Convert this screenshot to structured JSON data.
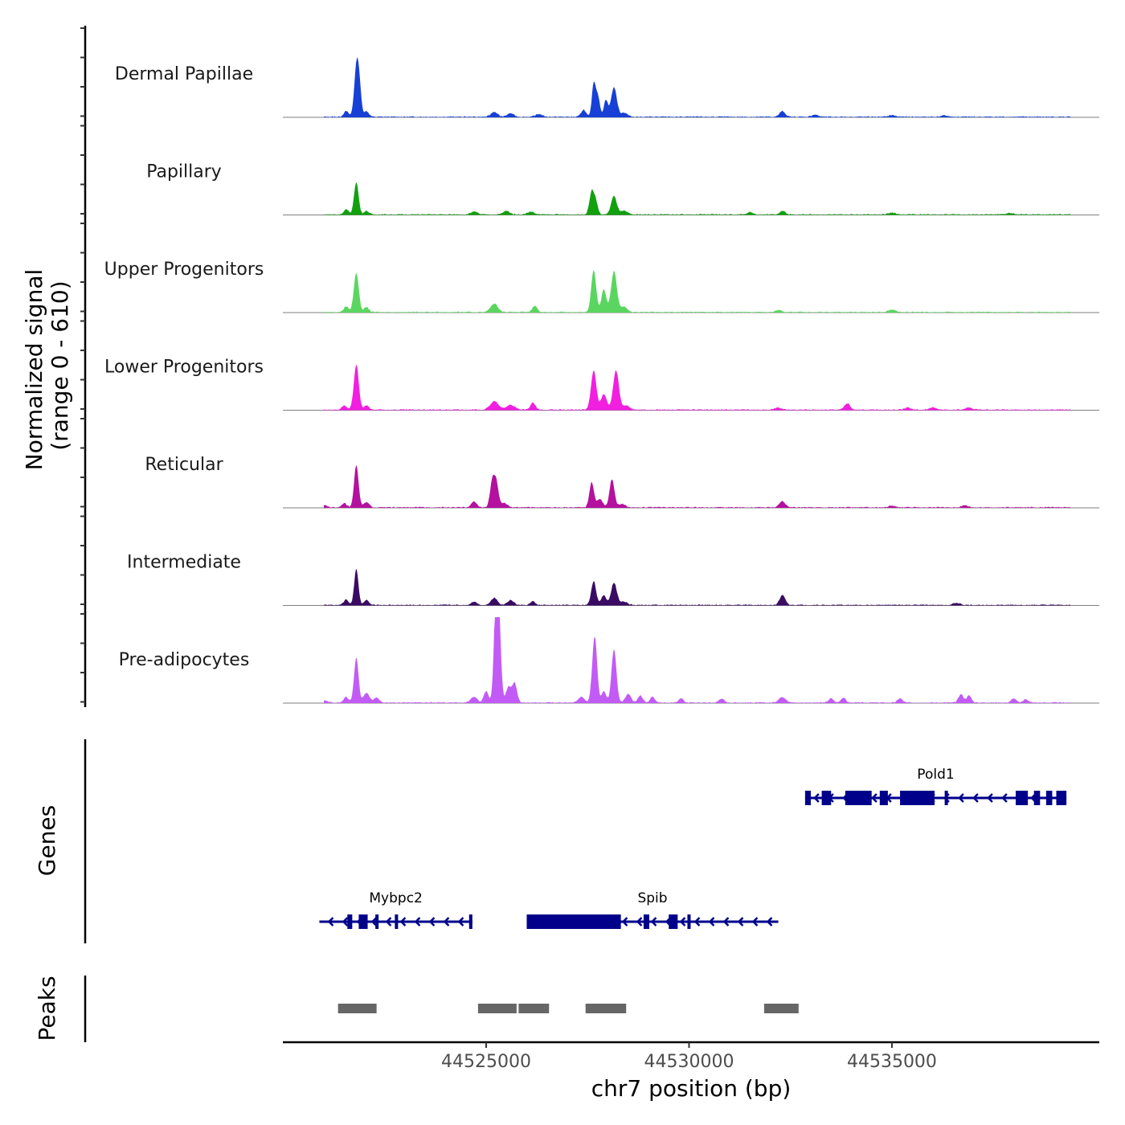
{
  "chart_data": {
    "type": "area",
    "title": "",
    "region": {
      "chrom": "chr7",
      "start": 44519990,
      "end": 44540110
    },
    "xlabel": "chr7 position (bp)",
    "ylabel": "Normalized signal",
    "ylabel_sub": "(range 0 - 610)",
    "ylim": [
      0,
      610
    ],
    "x_ticks": [
      44525000,
      44530000,
      44535000
    ],
    "x_tick_labels": [
      "44525000",
      "44530000",
      "44535000"
    ],
    "grid": false,
    "legend": "none",
    "signal_extent": [
      44521000,
      44539400
    ],
    "series": [
      {
        "name": "Dermal Papillae",
        "color": "#1740d6",
        "peaks": [
          [
            44521550,
            40,
            60
          ],
          [
            44521800,
            320,
            55
          ],
          [
            44521870,
            200,
            50
          ],
          [
            44522050,
            40,
            60
          ],
          [
            44525200,
            35,
            80
          ],
          [
            44525600,
            25,
            80
          ],
          [
            44526300,
            20,
            80
          ],
          [
            44527400,
            50,
            60
          ],
          [
            44527650,
            230,
            45
          ],
          [
            44527750,
            150,
            50
          ],
          [
            44527950,
            120,
            50
          ],
          [
            44528150,
            210,
            70
          ],
          [
            44528400,
            30,
            80
          ],
          [
            44532300,
            40,
            70
          ],
          [
            44533100,
            15,
            80
          ],
          [
            44535000,
            12,
            80
          ],
          [
            44536300,
            10,
            80
          ]
        ]
      },
      {
        "name": "Papillary",
        "color": "#12a00f",
        "peaks": [
          [
            44521550,
            35,
            60
          ],
          [
            44521800,
            230,
            55
          ],
          [
            44522050,
            25,
            60
          ],
          [
            44524700,
            20,
            80
          ],
          [
            44525500,
            25,
            80
          ],
          [
            44526100,
            20,
            80
          ],
          [
            44527600,
            160,
            55
          ],
          [
            44527700,
            90,
            50
          ],
          [
            44528150,
            130,
            70
          ],
          [
            44528400,
            25,
            80
          ],
          [
            44531500,
            15,
            80
          ],
          [
            44532300,
            25,
            70
          ],
          [
            44535000,
            12,
            80
          ],
          [
            44537900,
            10,
            80
          ]
        ]
      },
      {
        "name": "Upper Progenitors",
        "color": "#5ad660",
        "peaks": [
          [
            44521550,
            40,
            60
          ],
          [
            44521800,
            280,
            60
          ],
          [
            44522050,
            35,
            60
          ],
          [
            44525200,
            60,
            90
          ],
          [
            44526200,
            45,
            60
          ],
          [
            44527650,
            300,
            60
          ],
          [
            44527900,
            160,
            60
          ],
          [
            44528150,
            290,
            70
          ],
          [
            44528400,
            40,
            80
          ],
          [
            44532200,
            15,
            80
          ],
          [
            44535000,
            20,
            80
          ]
        ]
      },
      {
        "name": "Lower Progenitors",
        "color": "#f21ee0",
        "peaks": [
          [
            44521500,
            30,
            60
          ],
          [
            44521800,
            320,
            60
          ],
          [
            44522050,
            30,
            60
          ],
          [
            44525200,
            60,
            100
          ],
          [
            44525600,
            35,
            100
          ],
          [
            44526150,
            50,
            60
          ],
          [
            44527650,
            280,
            65
          ],
          [
            44527900,
            110,
            70
          ],
          [
            44528200,
            280,
            70
          ],
          [
            44528450,
            30,
            80
          ],
          [
            44532200,
            15,
            80
          ],
          [
            44533900,
            45,
            70
          ],
          [
            44535400,
            15,
            80
          ],
          [
            44536000,
            15,
            80
          ],
          [
            44536900,
            15,
            80
          ]
        ]
      },
      {
        "name": "Reticular",
        "color": "#b3119e",
        "peaks": [
          [
            44521000,
            15,
            80
          ],
          [
            44521500,
            30,
            60
          ],
          [
            44521800,
            300,
            55
          ],
          [
            44522050,
            35,
            70
          ],
          [
            44524700,
            40,
            70
          ],
          [
            44525150,
            180,
            55
          ],
          [
            44525250,
            170,
            55
          ],
          [
            44525450,
            30,
            80
          ],
          [
            44527600,
            180,
            55
          ],
          [
            44527800,
            60,
            70
          ],
          [
            44528100,
            200,
            60
          ],
          [
            44528350,
            25,
            80
          ],
          [
            44532300,
            45,
            70
          ],
          [
            44535000,
            12,
            80
          ],
          [
            44536800,
            15,
            80
          ]
        ]
      },
      {
        "name": "Intermediate",
        "color": "#3a0b63",
        "peaks": [
          [
            44521550,
            40,
            60
          ],
          [
            44521800,
            260,
            50
          ],
          [
            44522050,
            35,
            60
          ],
          [
            44524700,
            25,
            70
          ],
          [
            44525200,
            50,
            80
          ],
          [
            44525600,
            35,
            80
          ],
          [
            44526150,
            25,
            60
          ],
          [
            44527650,
            170,
            60
          ],
          [
            44527900,
            70,
            60
          ],
          [
            44528150,
            160,
            70
          ],
          [
            44528400,
            25,
            80
          ],
          [
            44532300,
            70,
            70
          ],
          [
            44536600,
            15,
            80
          ]
        ]
      },
      {
        "name": "Pre-adipocytes",
        "color": "#c25bf5",
        "peaks": [
          [
            44521000,
            15,
            80
          ],
          [
            44521550,
            40,
            60
          ],
          [
            44521800,
            320,
            55
          ],
          [
            44522050,
            70,
            70
          ],
          [
            44522300,
            35,
            70
          ],
          [
            44524700,
            40,
            80
          ],
          [
            44525000,
            80,
            60
          ],
          [
            44525250,
            610,
            55
          ],
          [
            44525300,
            540,
            60
          ],
          [
            44525550,
            110,
            60
          ],
          [
            44525700,
            140,
            60
          ],
          [
            44527350,
            40,
            80
          ],
          [
            44527650,
            280,
            55
          ],
          [
            44527700,
            250,
            50
          ],
          [
            44527900,
            80,
            60
          ],
          [
            44528150,
            380,
            60
          ],
          [
            44528500,
            60,
            70
          ],
          [
            44528800,
            50,
            60
          ],
          [
            44529100,
            40,
            60
          ],
          [
            44529800,
            30,
            60
          ],
          [
            44530800,
            30,
            60
          ],
          [
            44532300,
            40,
            90
          ],
          [
            44533500,
            30,
            60
          ],
          [
            44533800,
            35,
            60
          ],
          [
            44535200,
            30,
            60
          ],
          [
            44536700,
            60,
            60
          ],
          [
            44536900,
            50,
            60
          ],
          [
            44538000,
            30,
            60
          ],
          [
            44538300,
            25,
            60
          ]
        ]
      }
    ],
    "genes": [
      {
        "name": "Pold1",
        "strand": "-",
        "start": 44532860,
        "end": 44539300,
        "exons": [
          [
            44532860,
            44533000
          ],
          [
            44533270,
            44533500
          ],
          [
            44533850,
            44534500
          ],
          [
            44534700,
            44534900
          ],
          [
            44535200,
            44536050
          ],
          [
            44536300,
            44536370
          ],
          [
            44538050,
            44538350
          ],
          [
            44538500,
            44538650
          ],
          [
            44538800,
            44538950
          ],
          [
            44539050,
            44539300
          ]
        ]
      },
      {
        "name": "Mybpc2",
        "strand": "-",
        "start": 44520890,
        "end": 44524660,
        "exons": [
          [
            44521580,
            44521700
          ],
          [
            44521860,
            44522080
          ],
          [
            44522270,
            44522330
          ],
          [
            44522750,
            44522800
          ],
          [
            44524580,
            44524660
          ]
        ]
      },
      {
        "name": "Spib",
        "strand": "-",
        "start": 44526000,
        "end": 44532200,
        "exons": [
          [
            44526000,
            44528320
          ],
          [
            44528880,
            44529020
          ],
          [
            44529500,
            44529720
          ],
          [
            44529960,
            44530020
          ]
        ]
      }
    ],
    "peaks_track": [
      [
        44521350,
        44522300
      ],
      [
        44524800,
        44525750
      ],
      [
        44525800,
        44526550
      ],
      [
        44527450,
        44528450
      ],
      [
        44531850,
        44532700
      ]
    ]
  },
  "labels": {
    "genes_track": "Genes",
    "peaks_track": "Peaks"
  }
}
